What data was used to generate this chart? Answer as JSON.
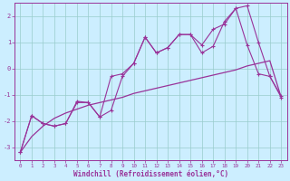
{
  "xlabel": "Windchill (Refroidissement éolien,°C)",
  "bg_color": "#cceeff",
  "grid_color": "#99cccc",
  "line_color": "#993399",
  "xlim": [
    -0.5,
    23.5
  ],
  "ylim": [
    -3.5,
    2.5
  ],
  "xticks": [
    0,
    1,
    2,
    3,
    4,
    5,
    6,
    7,
    8,
    9,
    10,
    11,
    12,
    13,
    14,
    15,
    16,
    17,
    18,
    19,
    20,
    21,
    22,
    23
  ],
  "yticks": [
    -3,
    -2,
    -1,
    0,
    1,
    2
  ],
  "series_smooth_x": [
    0,
    1,
    2,
    3,
    4,
    5,
    6,
    7,
    8,
    9,
    10,
    11,
    12,
    13,
    14,
    15,
    16,
    17,
    18,
    19,
    20,
    21,
    22,
    23
  ],
  "series_smooth_y": [
    -3.2,
    -2.6,
    -2.2,
    -1.9,
    -1.7,
    -1.55,
    -1.4,
    -1.3,
    -1.2,
    -1.1,
    -0.95,
    -0.85,
    -0.75,
    -0.65,
    -0.55,
    -0.45,
    -0.35,
    -0.25,
    -0.15,
    -0.05,
    0.1,
    0.2,
    0.3,
    -1.1
  ],
  "series_line2_x": [
    0,
    1,
    2,
    3,
    4,
    5,
    6,
    7,
    8,
    9,
    10,
    11,
    12,
    13,
    14,
    15,
    16,
    17,
    18,
    19,
    20,
    21,
    22,
    23
  ],
  "series_line2_y": [
    -3.2,
    -1.8,
    -2.1,
    -2.2,
    -2.1,
    -1.3,
    -1.3,
    -1.85,
    -1.6,
    -0.3,
    0.2,
    1.2,
    0.6,
    0.8,
    1.3,
    1.3,
    0.6,
    0.85,
    1.8,
    2.3,
    2.4,
    1.0,
    -0.3,
    -1.1
  ],
  "series_line3_x": [
    0,
    1,
    2,
    3,
    4,
    5,
    6,
    7,
    8,
    9,
    10,
    11,
    12,
    13,
    14,
    15,
    16,
    17,
    18,
    19,
    20,
    21,
    22,
    23
  ],
  "series_line3_y": [
    -3.2,
    -1.8,
    -2.1,
    -2.2,
    -2.1,
    -1.25,
    -1.3,
    -1.85,
    -0.3,
    -0.2,
    0.2,
    1.2,
    0.6,
    0.8,
    1.3,
    1.3,
    0.9,
    1.5,
    1.7,
    2.3,
    0.9,
    -0.2,
    -0.3,
    -1.05
  ]
}
